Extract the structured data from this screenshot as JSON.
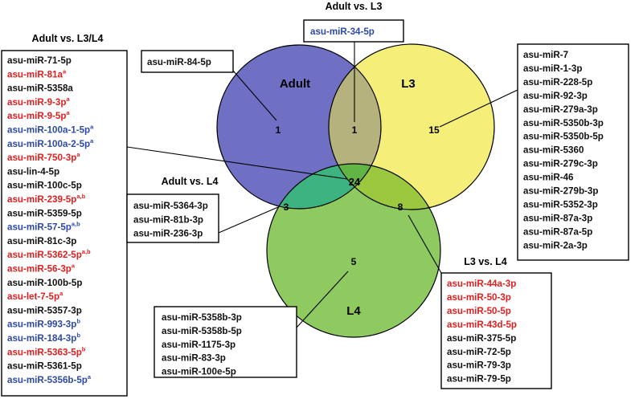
{
  "colors": {
    "black": "#111111",
    "red": "#e02020",
    "blue": "#2d49a8",
    "adult": "#6f6fc4",
    "l3": "#f5ef7a",
    "l4": "#8fca61",
    "adult_l3": "#b5b27e",
    "adult_l4": "#3cb380",
    "l3_l4": "#9bc83e",
    "center": "#62b445"
  },
  "titles": {
    "adult_l3l4": "Adult vs. L3/L4",
    "adult_l3": "Adult vs. L3",
    "adult_l4": "Adult vs. L4",
    "l3_l4": "L3 vs. L4"
  },
  "circles": {
    "adult": "Adult",
    "l3": "L3",
    "l4": "L4"
  },
  "counts": {
    "adult_only": "1",
    "adult_l3": "1",
    "l3_only": "15",
    "adult_l4": "3",
    "all": "24",
    "l3_l4": "8",
    "l4_only": "5"
  },
  "lists": {
    "left": [
      {
        "t": "asu-miR-71-5p",
        "s": "",
        "c": "black"
      },
      {
        "t": "asu-miR-81a",
        "s": "a",
        "c": "red"
      },
      {
        "t": "asu-miR-5358a",
        "s": "",
        "c": "black"
      },
      {
        "t": "asu-miR-9-3p",
        "s": "a",
        "c": "red"
      },
      {
        "t": "asu-miR-9-5p",
        "s": "a",
        "c": "red"
      },
      {
        "t": "asu-miR-100a-1-5p",
        "s": "a",
        "c": "blue"
      },
      {
        "t": "asu-miR-100a-2-5p",
        "s": "a",
        "c": "blue"
      },
      {
        "t": "asu-miR-750-3p",
        "s": "a",
        "c": "red"
      },
      {
        "t": "asu-lin-4-5p",
        "s": "",
        "c": "black"
      },
      {
        "t": "asu-miR-100c-5p",
        "s": "",
        "c": "black"
      },
      {
        "t": "asu-miR-239-5p",
        "s": "a,b",
        "c": "red"
      },
      {
        "t": "asu-miR-5359-5p",
        "s": "",
        "c": "black"
      },
      {
        "t": "asu-miR-57-5p",
        "s": "a,b",
        "c": "blue"
      },
      {
        "t": "asu-miR-81c-3p",
        "s": "",
        "c": "black"
      },
      {
        "t": "asu-miR-5362-5p",
        "s": "a,b",
        "c": "red"
      },
      {
        "t": "asu-miR-56-3p",
        "s": "a",
        "c": "red"
      },
      {
        "t": "asu-miR-100b-5p",
        "s": "",
        "c": "black"
      },
      {
        "t": "asu-let-7-5p",
        "s": "a",
        "c": "red"
      },
      {
        "t": "asu-miR-5357-3p",
        "s": "",
        "c": "black"
      },
      {
        "t": "asu-miR-993-3p",
        "s": "b",
        "c": "blue"
      },
      {
        "t": "asu-miR-184-3p",
        "s": "b",
        "c": "blue"
      },
      {
        "t": "asu-miR-5363-5p",
        "s": "b",
        "c": "red"
      },
      {
        "t": "asu-miR-5361-5p",
        "s": "",
        "c": "black"
      },
      {
        "t": "asu-miR-5356b-5p",
        "s": "a",
        "c": "blue"
      }
    ],
    "adult_only": [
      {
        "t": "asu-miR-84-5p",
        "s": "",
        "c": "black"
      }
    ],
    "adult_l3": [
      {
        "t": "asu-miR-34-5p",
        "s": "",
        "c": "blue"
      }
    ],
    "l3_only": [
      {
        "t": "asu-miR-7",
        "s": "",
        "c": "black"
      },
      {
        "t": "asu-miR-1-3p",
        "s": "",
        "c": "black"
      },
      {
        "t": "asu-miR-228-5p",
        "s": "",
        "c": "black"
      },
      {
        "t": "asu-miR-92-3p",
        "s": "",
        "c": "black"
      },
      {
        "t": "asu-miR-279a-3p",
        "s": "",
        "c": "black"
      },
      {
        "t": "asu-miR-5350b-3p",
        "s": "",
        "c": "black"
      },
      {
        "t": "asu-miR-5350b-5p",
        "s": "",
        "c": "black"
      },
      {
        "t": "asu-miR-5360",
        "s": "",
        "c": "black"
      },
      {
        "t": "asu-miR-279c-3p",
        "s": "",
        "c": "black"
      },
      {
        "t": "asu-miR-46",
        "s": "",
        "c": "black"
      },
      {
        "t": "asu-miR-279b-3p",
        "s": "",
        "c": "black"
      },
      {
        "t": "asu-miR-5352-3p",
        "s": "",
        "c": "black"
      },
      {
        "t": "asu-miR-87a-3p",
        "s": "",
        "c": "black"
      },
      {
        "t": "asu-miR-87a-5p",
        "s": "",
        "c": "black"
      },
      {
        "t": "asu-miR-2a-3p",
        "s": "",
        "c": "black"
      }
    ],
    "adult_l4": [
      {
        "t": "asu-miR-5364-3p",
        "s": "",
        "c": "black"
      },
      {
        "t": "asu-miR-81b-3p",
        "s": "",
        "c": "black"
      },
      {
        "t": "asu-miR-236-3p",
        "s": "",
        "c": "black"
      }
    ],
    "l4_only": [
      {
        "t": "asu-miR-5358b-3p",
        "s": "",
        "c": "black"
      },
      {
        "t": "asu-miR-5358b-5p",
        "s": "",
        "c": "black"
      },
      {
        "t": "asu-miR-1175-3p",
        "s": "",
        "c": "black"
      },
      {
        "t": "asu-miR-83-3p",
        "s": "",
        "c": "black"
      },
      {
        "t": "asu-miR-100e-5p",
        "s": "",
        "c": "black"
      }
    ],
    "l3_l4": [
      {
        "t": "asu-miR-44a-3p",
        "s": "",
        "c": "red"
      },
      {
        "t": "asu-miR-50-3p",
        "s": "",
        "c": "red"
      },
      {
        "t": "asu-miR-50-5p",
        "s": "",
        "c": "red"
      },
      {
        "t": "asu-miR-43d-5p",
        "s": "",
        "c": "red"
      },
      {
        "t": "asu-miR-375-5p",
        "s": "",
        "c": "black"
      },
      {
        "t": "asu-miR-72-5p",
        "s": "",
        "c": "black"
      },
      {
        "t": "asu-miR-79-3p",
        "s": "",
        "c": "black"
      },
      {
        "t": "asu-miR-79-5p",
        "s": "",
        "c": "black"
      }
    ]
  }
}
